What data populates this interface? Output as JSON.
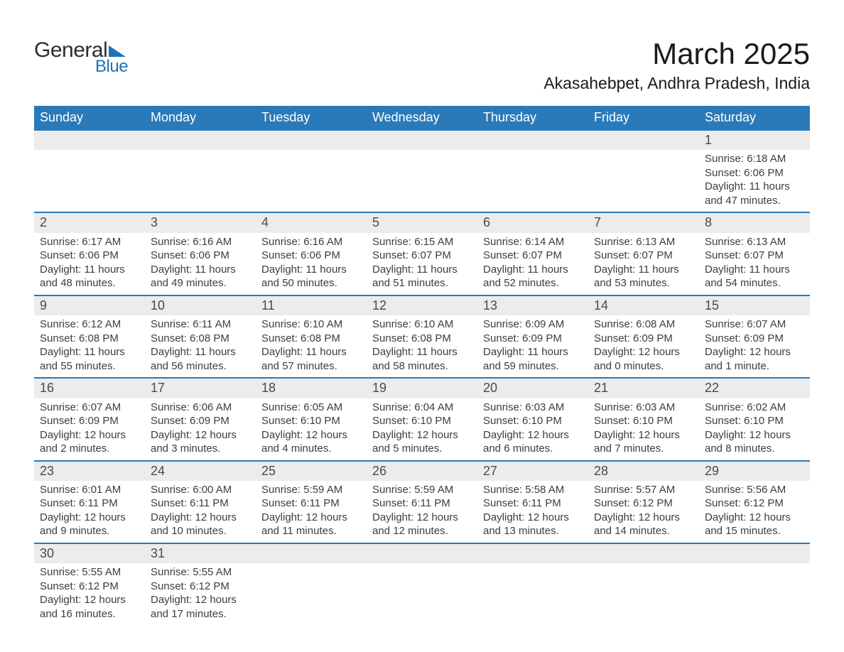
{
  "brand": {
    "word1": "General",
    "word2": "Blue",
    "accent_color": "#1d71b8"
  },
  "title": "March 2025",
  "subtitle": "Akasahebpet, Andhra Pradesh, India",
  "calendar": {
    "header_bg": "#2a7ab9",
    "header_fg": "#ffffff",
    "shade_bg": "#ececec",
    "border_color": "#2a7ab9",
    "text_color": "#3d3d3d",
    "font_family": "Arial",
    "columns": [
      "Sunday",
      "Monday",
      "Tuesday",
      "Wednesday",
      "Thursday",
      "Friday",
      "Saturday"
    ],
    "weeks": [
      [
        null,
        null,
        null,
        null,
        null,
        null,
        {
          "day": "1",
          "sunrise": "Sunrise: 6:18 AM",
          "sunset": "Sunset: 6:06 PM",
          "daylight": "Daylight: 11 hours and 47 minutes."
        }
      ],
      [
        {
          "day": "2",
          "sunrise": "Sunrise: 6:17 AM",
          "sunset": "Sunset: 6:06 PM",
          "daylight": "Daylight: 11 hours and 48 minutes."
        },
        {
          "day": "3",
          "sunrise": "Sunrise: 6:16 AM",
          "sunset": "Sunset: 6:06 PM",
          "daylight": "Daylight: 11 hours and 49 minutes."
        },
        {
          "day": "4",
          "sunrise": "Sunrise: 6:16 AM",
          "sunset": "Sunset: 6:06 PM",
          "daylight": "Daylight: 11 hours and 50 minutes."
        },
        {
          "day": "5",
          "sunrise": "Sunrise: 6:15 AM",
          "sunset": "Sunset: 6:07 PM",
          "daylight": "Daylight: 11 hours and 51 minutes."
        },
        {
          "day": "6",
          "sunrise": "Sunrise: 6:14 AM",
          "sunset": "Sunset: 6:07 PM",
          "daylight": "Daylight: 11 hours and 52 minutes."
        },
        {
          "day": "7",
          "sunrise": "Sunrise: 6:13 AM",
          "sunset": "Sunset: 6:07 PM",
          "daylight": "Daylight: 11 hours and 53 minutes."
        },
        {
          "day": "8",
          "sunrise": "Sunrise: 6:13 AM",
          "sunset": "Sunset: 6:07 PM",
          "daylight": "Daylight: 11 hours and 54 minutes."
        }
      ],
      [
        {
          "day": "9",
          "sunrise": "Sunrise: 6:12 AM",
          "sunset": "Sunset: 6:08 PM",
          "daylight": "Daylight: 11 hours and 55 minutes."
        },
        {
          "day": "10",
          "sunrise": "Sunrise: 6:11 AM",
          "sunset": "Sunset: 6:08 PM",
          "daylight": "Daylight: 11 hours and 56 minutes."
        },
        {
          "day": "11",
          "sunrise": "Sunrise: 6:10 AM",
          "sunset": "Sunset: 6:08 PM",
          "daylight": "Daylight: 11 hours and 57 minutes."
        },
        {
          "day": "12",
          "sunrise": "Sunrise: 6:10 AM",
          "sunset": "Sunset: 6:08 PM",
          "daylight": "Daylight: 11 hours and 58 minutes."
        },
        {
          "day": "13",
          "sunrise": "Sunrise: 6:09 AM",
          "sunset": "Sunset: 6:09 PM",
          "daylight": "Daylight: 11 hours and 59 minutes."
        },
        {
          "day": "14",
          "sunrise": "Sunrise: 6:08 AM",
          "sunset": "Sunset: 6:09 PM",
          "daylight": "Daylight: 12 hours and 0 minutes."
        },
        {
          "day": "15",
          "sunrise": "Sunrise: 6:07 AM",
          "sunset": "Sunset: 6:09 PM",
          "daylight": "Daylight: 12 hours and 1 minute."
        }
      ],
      [
        {
          "day": "16",
          "sunrise": "Sunrise: 6:07 AM",
          "sunset": "Sunset: 6:09 PM",
          "daylight": "Daylight: 12 hours and 2 minutes."
        },
        {
          "day": "17",
          "sunrise": "Sunrise: 6:06 AM",
          "sunset": "Sunset: 6:09 PM",
          "daylight": "Daylight: 12 hours and 3 minutes."
        },
        {
          "day": "18",
          "sunrise": "Sunrise: 6:05 AM",
          "sunset": "Sunset: 6:10 PM",
          "daylight": "Daylight: 12 hours and 4 minutes."
        },
        {
          "day": "19",
          "sunrise": "Sunrise: 6:04 AM",
          "sunset": "Sunset: 6:10 PM",
          "daylight": "Daylight: 12 hours and 5 minutes."
        },
        {
          "day": "20",
          "sunrise": "Sunrise: 6:03 AM",
          "sunset": "Sunset: 6:10 PM",
          "daylight": "Daylight: 12 hours and 6 minutes."
        },
        {
          "day": "21",
          "sunrise": "Sunrise: 6:03 AM",
          "sunset": "Sunset: 6:10 PM",
          "daylight": "Daylight: 12 hours and 7 minutes."
        },
        {
          "day": "22",
          "sunrise": "Sunrise: 6:02 AM",
          "sunset": "Sunset: 6:10 PM",
          "daylight": "Daylight: 12 hours and 8 minutes."
        }
      ],
      [
        {
          "day": "23",
          "sunrise": "Sunrise: 6:01 AM",
          "sunset": "Sunset: 6:11 PM",
          "daylight": "Daylight: 12 hours and 9 minutes."
        },
        {
          "day": "24",
          "sunrise": "Sunrise: 6:00 AM",
          "sunset": "Sunset: 6:11 PM",
          "daylight": "Daylight: 12 hours and 10 minutes."
        },
        {
          "day": "25",
          "sunrise": "Sunrise: 5:59 AM",
          "sunset": "Sunset: 6:11 PM",
          "daylight": "Daylight: 12 hours and 11 minutes."
        },
        {
          "day": "26",
          "sunrise": "Sunrise: 5:59 AM",
          "sunset": "Sunset: 6:11 PM",
          "daylight": "Daylight: 12 hours and 12 minutes."
        },
        {
          "day": "27",
          "sunrise": "Sunrise: 5:58 AM",
          "sunset": "Sunset: 6:11 PM",
          "daylight": "Daylight: 12 hours and 13 minutes."
        },
        {
          "day": "28",
          "sunrise": "Sunrise: 5:57 AM",
          "sunset": "Sunset: 6:12 PM",
          "daylight": "Daylight: 12 hours and 14 minutes."
        },
        {
          "day": "29",
          "sunrise": "Sunrise: 5:56 AM",
          "sunset": "Sunset: 6:12 PM",
          "daylight": "Daylight: 12 hours and 15 minutes."
        }
      ],
      [
        {
          "day": "30",
          "sunrise": "Sunrise: 5:55 AM",
          "sunset": "Sunset: 6:12 PM",
          "daylight": "Daylight: 12 hours and 16 minutes."
        },
        {
          "day": "31",
          "sunrise": "Sunrise: 5:55 AM",
          "sunset": "Sunset: 6:12 PM",
          "daylight": "Daylight: 12 hours and 17 minutes."
        },
        null,
        null,
        null,
        null,
        null
      ]
    ]
  }
}
